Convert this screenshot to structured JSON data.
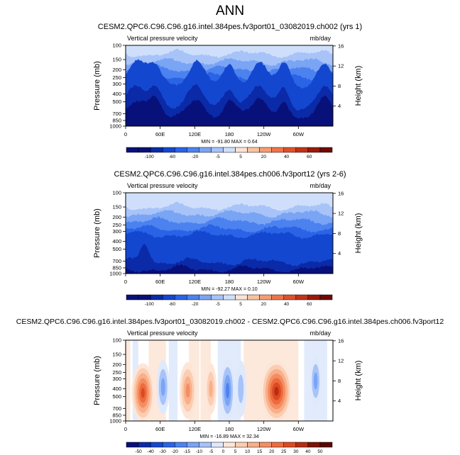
{
  "page_title": "ANN",
  "chart_data": [
    {
      "type": "heatmap",
      "title": "CESM2.QPC6.C96.C96.g16.intel.384pes.fv3port01_03082019.ch002 (yrs 1)",
      "left_label": "Vertical pressure velocity",
      "right_label": "mb/day",
      "ylabel": "Pressure (mb)",
      "y2label": "Height (km)",
      "ylim": [
        1000,
        100
      ],
      "yticks": [
        100,
        150,
        200,
        250,
        300,
        400,
        500,
        700,
        850,
        1000
      ],
      "y2ticks": [
        16,
        12,
        8,
        4
      ],
      "xlim": [
        0,
        360
      ],
      "xticks": [
        "0",
        "60E",
        "120E",
        "180",
        "120W",
        "60W"
      ],
      "stats": "MIN = -91.80   MAX =   0.64",
      "colorbar": [
        "-100",
        "-60",
        "-20",
        "-5",
        "5",
        "20",
        "40",
        "60"
      ]
    },
    {
      "type": "heatmap",
      "title": "CESM2.QPC6.C96.C96.g16.intel.384pes.ch006.fv3port12 (yrs 2-6)",
      "left_label": "Vertical pressure velocity",
      "right_label": "mb/day",
      "ylabel": "Pressure (mb)",
      "y2label": "Height (km)",
      "ylim": [
        1000,
        100
      ],
      "yticks": [
        100,
        150,
        200,
        250,
        300,
        400,
        500,
        700,
        850,
        1000
      ],
      "y2ticks": [
        16,
        12,
        8,
        4
      ],
      "xlim": [
        0,
        360
      ],
      "xticks": [
        "0",
        "60E",
        "120E",
        "180",
        "120W",
        "60W"
      ],
      "stats": "MIN = -92.27   MAX =   0.10",
      "colorbar": [
        "-100",
        "-60",
        "-20",
        "-5",
        "5",
        "20",
        "40",
        "60"
      ]
    },
    {
      "type": "heatmap",
      "title": "CESM2.QPC6.C96.C96.g16.intel.384pes.fv3port01_03082019.ch002 - CESM2.QPC6.C96.C96.g16.intel.384pes.ch006.fv3port12",
      "left_label": "Vertical pressure velocity",
      "right_label": "mb/day",
      "ylabel": "Pressure (mb)",
      "y2label": "Height (km)",
      "ylim": [
        1000,
        100
      ],
      "yticks": [
        100,
        150,
        200,
        250,
        300,
        400,
        500,
        700,
        850,
        1000
      ],
      "y2ticks": [
        16,
        12,
        8,
        4
      ],
      "xlim": [
        0,
        360
      ],
      "xticks": [
        "0",
        "60E",
        "120E",
        "180",
        "120W",
        "60W"
      ],
      "stats": "MIN = -16.89   MAX = 32.34",
      "colorbar": [
        "-50",
        "-40",
        "-30",
        "-20",
        "-15",
        "-10",
        "-5",
        "0",
        "5",
        "10",
        "15",
        "20",
        "25",
        "30",
        "40",
        "50"
      ]
    }
  ],
  "colors": {
    "blues": [
      "#08107a",
      "#0a2aa8",
      "#1447d0",
      "#2a63e6",
      "#4c82ef",
      "#7aa4f4",
      "#a7c3f8",
      "#cfdffb"
    ],
    "reds": [
      "#fbe2d2",
      "#f8c2a2",
      "#f49c73",
      "#ef744a",
      "#e0502c",
      "#c23218",
      "#9a1a0c",
      "#6e0a04"
    ],
    "diff_neg": [
      "#08107a",
      "#0a2aa8",
      "#1447d0",
      "#2a63e6",
      "#4c82ef",
      "#7aa4f4",
      "#a7c3f8",
      "#dfe9fc"
    ],
    "diff_pos": [
      "#fde6d8",
      "#fbcdb2",
      "#f8b08a",
      "#f48e62",
      "#ee6b3d",
      "#dc4a22",
      "#b62e12",
      "#7e1206"
    ]
  }
}
